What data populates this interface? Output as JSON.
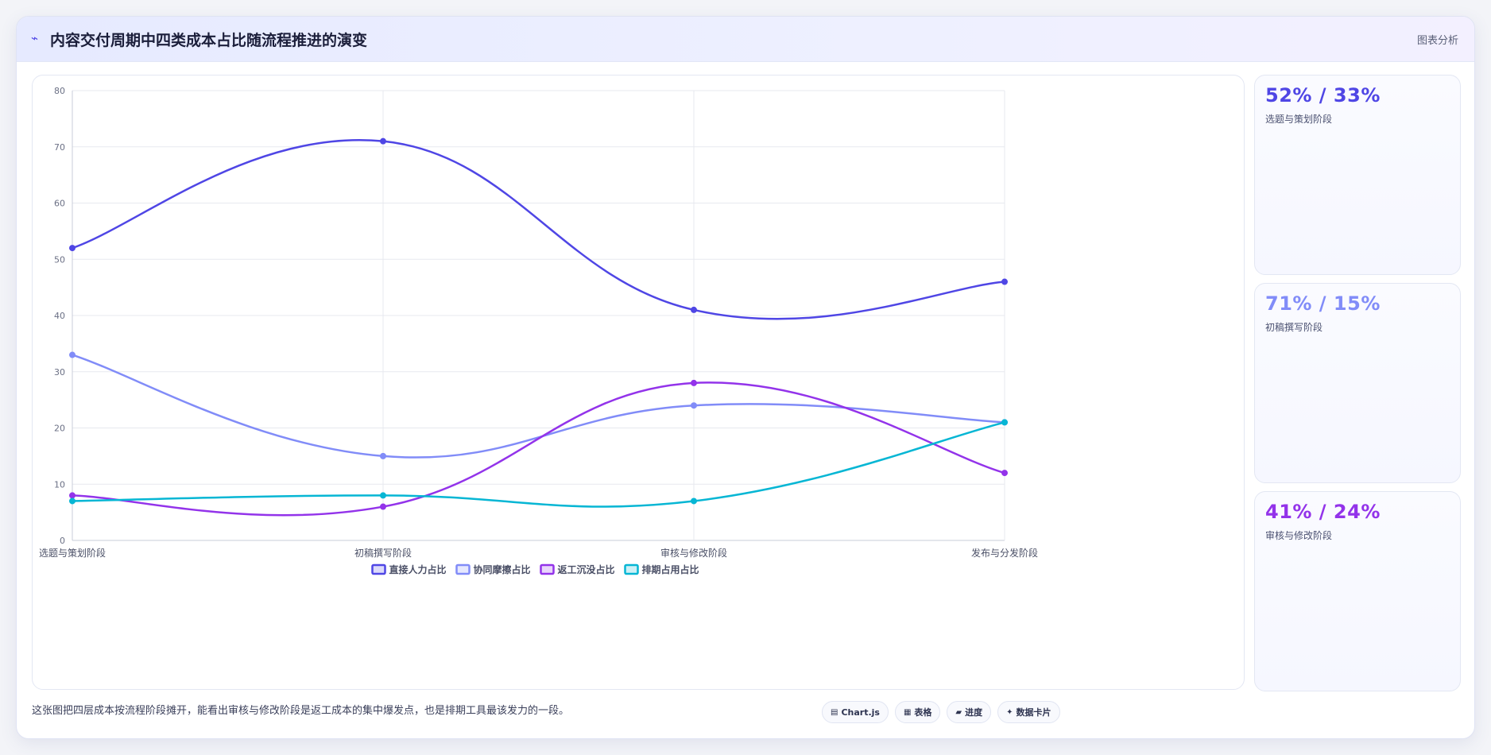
{
  "header": {
    "title_icon": "sparkle-icon",
    "title": "内容交付周期中四类成本占比随流程推进的演变",
    "tag": "图表分析"
  },
  "chart_data": {
    "type": "line",
    "title": "",
    "xlabel": "",
    "ylabel": "",
    "categories": [
      "选题与策划阶段",
      "初稿撰写阶段",
      "审核与修改阶段",
      "发布与分发阶段"
    ],
    "ylim": [
      0,
      80
    ],
    "yticks": [
      0,
      10,
      20,
      30,
      40,
      50,
      60,
      70,
      80
    ],
    "grid": true,
    "legend_position": "bottom",
    "smooth": true,
    "series": [
      {
        "name": "直接人力占比",
        "color": "#4f46e5",
        "values": [
          52,
          71,
          41,
          46
        ]
      },
      {
        "name": "协同摩擦占比",
        "color": "#818cf8",
        "values": [
          33,
          15,
          24,
          21
        ]
      },
      {
        "name": "返工沉没占比",
        "color": "#9333ea",
        "values": [
          8,
          6,
          28,
          12
        ]
      },
      {
        "name": "排期占用占比",
        "color": "#06b6d4",
        "values": [
          7,
          8,
          7,
          21
        ]
      }
    ]
  },
  "cards": [
    {
      "value": "52% / 33%",
      "label": "选题与策划阶段",
      "color": "#4f46e5"
    },
    {
      "value": "71% / 15%",
      "label": "初稿撰写阶段",
      "color": "#818cf8"
    },
    {
      "value": "41% / 24%",
      "label": "审核与修改阶段",
      "color": "#9333ea"
    }
  ],
  "footer": {
    "note": "这张图把四层成本按流程阶段摊开，能看出审核与修改阶段是返工成本的集中爆发点，也是排期工具最该发力的一段。",
    "chips": [
      {
        "icon": "chart-icon",
        "glyph": "▤",
        "label": "Chart.js"
      },
      {
        "icon": "table-icon",
        "glyph": "▦",
        "label": "表格"
      },
      {
        "icon": "progress-icon",
        "glyph": "▰",
        "label": "进度"
      },
      {
        "icon": "datacard-icon",
        "glyph": "✦",
        "label": "数据卡片"
      }
    ]
  }
}
